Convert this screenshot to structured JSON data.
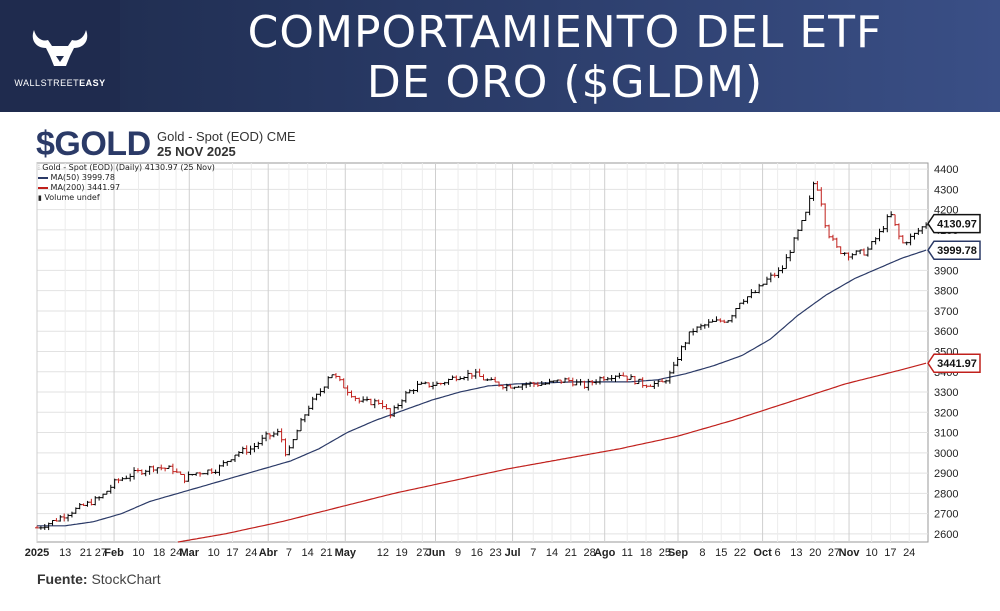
{
  "banner": {
    "brand": "WALLSTREETEASY",
    "brand_light": "WALLSTREET",
    "brand_bold": "EASY",
    "title_line1": "COMPORTAMIENTO DEL ETF",
    "title_line2": "DE ORO ($GLDM)"
  },
  "header": {
    "symbol": "$GOLD",
    "name": "Gold - Spot (EOD) CME",
    "date": "25 NOV 2025"
  },
  "legend": {
    "line1": "Gold - Spot (EOD) (Daily) 4130.97 (25 Nov)",
    "line2": "MA(50) 3999.78",
    "line3": "MA(200) 3441.97",
    "line4": "Volume undef"
  },
  "source": {
    "label": "Fuente:",
    "value": "StockChart"
  },
  "colors": {
    "up": "#000000",
    "down": "#c0201c",
    "ma50": "#2b3a67",
    "ma200": "#c0201c",
    "banner": "#25355e"
  },
  "chart_data": {
    "type": "line",
    "title": "Gold - Spot (EOD) CME",
    "ylim": [
      2560,
      4430
    ],
    "y_ticks": [
      2600,
      2700,
      2800,
      2900,
      3000,
      3100,
      3200,
      3300,
      3400,
      3500,
      3600,
      3700,
      3800,
      3900,
      4000,
      4100,
      4200,
      4300,
      4400
    ],
    "y_tick_labels": [
      "2600",
      "2700",
      "2800",
      "2900",
      "3000",
      "3100",
      "3200",
      "3300",
      "3400",
      "3500",
      "3600",
      "3700",
      "3800",
      "3900",
      "4000",
      "4100",
      "4200",
      "4300",
      "4400"
    ],
    "x_ticks": [
      {
        "label": "2025",
        "week": 0,
        "bold": true
      },
      {
        "label": "13",
        "week": 1.5
      },
      {
        "label": "21",
        "week": 2.6
      },
      {
        "label": "27",
        "week": 3.4
      },
      {
        "label": "Feb",
        "week": 4.1,
        "bold": true
      },
      {
        "label": "10",
        "week": 5.4
      },
      {
        "label": "18",
        "week": 6.5
      },
      {
        "label": "24",
        "week": 7.4
      },
      {
        "label": "Mar",
        "week": 8.1,
        "bold": true
      },
      {
        "label": "10",
        "week": 9.4
      },
      {
        "label": "17",
        "week": 10.4
      },
      {
        "label": "24",
        "week": 11.4
      },
      {
        "label": "Abr",
        "week": 12.3,
        "bold": true
      },
      {
        "label": "7",
        "week": 13.4
      },
      {
        "label": "14",
        "week": 14.4
      },
      {
        "label": "21",
        "week": 15.4
      },
      {
        "label": "May",
        "week": 16.4,
        "bold": true
      },
      {
        "label": "12",
        "week": 18.4
      },
      {
        "label": "19",
        "week": 19.4
      },
      {
        "label": "27",
        "week": 20.5
      },
      {
        "label": "Jun",
        "week": 21.2,
        "bold": true
      },
      {
        "label": "9",
        "week": 22.4
      },
      {
        "label": "16",
        "week": 23.4
      },
      {
        "label": "23",
        "week": 24.4
      },
      {
        "label": "Jul",
        "week": 25.3,
        "bold": true
      },
      {
        "label": "7",
        "week": 26.4
      },
      {
        "label": "14",
        "week": 27.4
      },
      {
        "label": "21",
        "week": 28.4
      },
      {
        "label": "28",
        "week": 29.4
      },
      {
        "label": "Ago",
        "week": 30.2,
        "bold": true
      },
      {
        "label": "11",
        "week": 31.4
      },
      {
        "label": "18",
        "week": 32.4
      },
      {
        "label": "25",
        "week": 33.4
      },
      {
        "label": "Sep",
        "week": 34.1,
        "bold": true
      },
      {
        "label": "8",
        "week": 35.4
      },
      {
        "label": "15",
        "week": 36.4
      },
      {
        "label": "22",
        "week": 37.4
      },
      {
        "label": "Oct",
        "week": 38.6,
        "bold": true
      },
      {
        "label": "6",
        "week": 39.4
      },
      {
        "label": "13",
        "week": 40.4
      },
      {
        "label": "20",
        "week": 41.4
      },
      {
        "label": "27",
        "week": 42.4
      },
      {
        "label": "Nov",
        "week": 43.2,
        "bold": true
      },
      {
        "label": "10",
        "week": 44.4
      },
      {
        "label": "17",
        "week": 45.4
      },
      {
        "label": "24",
        "week": 46.4
      }
    ],
    "x_range": [
      0,
      47.4
    ],
    "price_anchors": [
      [
        0,
        2630
      ],
      [
        0.8,
        2660
      ],
      [
        1.6,
        2700
      ],
      [
        2.5,
        2740
      ],
      [
        3.4,
        2780
      ],
      [
        4.2,
        2860
      ],
      [
        5.2,
        2900
      ],
      [
        6.2,
        2930
      ],
      [
        7.2,
        2920
      ],
      [
        7.8,
        2870
      ],
      [
        8.4,
        2900
      ],
      [
        9.6,
        2920
      ],
      [
        10.6,
        3000
      ],
      [
        11.4,
        3020
      ],
      [
        12.2,
        3080
      ],
      [
        12.9,
        3100
      ],
      [
        13.3,
        2980
      ],
      [
        13.8,
        3100
      ],
      [
        14.4,
        3220
      ],
      [
        15.2,
        3320
      ],
      [
        15.6,
        3400
      ],
      [
        16.4,
        3320
      ],
      [
        17.2,
        3250
      ],
      [
        18.3,
        3250
      ],
      [
        18.8,
        3180
      ],
      [
        19.5,
        3280
      ],
      [
        20.2,
        3330
      ],
      [
        21.4,
        3340
      ],
      [
        22.4,
        3380
      ],
      [
        23.2,
        3390
      ],
      [
        24.1,
        3350
      ],
      [
        25.0,
        3330
      ],
      [
        26.0,
        3340
      ],
      [
        27.0,
        3340
      ],
      [
        28.2,
        3360
      ],
      [
        29.1,
        3330
      ],
      [
        30.0,
        3370
      ],
      [
        31.0,
        3390
      ],
      [
        32.2,
        3340
      ],
      [
        33.2,
        3340
      ],
      [
        33.8,
        3400
      ],
      [
        34.2,
        3500
      ],
      [
        34.8,
        3600
      ],
      [
        35.8,
        3640
      ],
      [
        36.8,
        3660
      ],
      [
        37.4,
        3750
      ],
      [
        38.2,
        3790
      ],
      [
        38.9,
        3860
      ],
      [
        39.6,
        3900
      ],
      [
        40.3,
        4050
      ],
      [
        41.0,
        4200
      ],
      [
        41.3,
        4330
      ],
      [
        41.6,
        4300
      ],
      [
        42.0,
        4100
      ],
      [
        42.6,
        4000
      ],
      [
        43.2,
        3980
      ],
      [
        44.1,
        3990
      ],
      [
        44.8,
        4080
      ],
      [
        45.4,
        4180
      ],
      [
        46.0,
        4030
      ],
      [
        46.6,
        4070
      ],
      [
        47.3,
        4131
      ]
    ],
    "ma50_anchors": [
      [
        0,
        2640
      ],
      [
        1.5,
        2640
      ],
      [
        3,
        2660
      ],
      [
        4.5,
        2700
      ],
      [
        6,
        2760
      ],
      [
        7.5,
        2800
      ],
      [
        9,
        2840
      ],
      [
        10.5,
        2880
      ],
      [
        12,
        2920
      ],
      [
        13.5,
        2960
      ],
      [
        15,
        3020
      ],
      [
        16.5,
        3100
      ],
      [
        18,
        3160
      ],
      [
        19.5,
        3210
      ],
      [
        21,
        3260
      ],
      [
        22.5,
        3300
      ],
      [
        24,
        3330
      ],
      [
        25.5,
        3340
      ],
      [
        27,
        3345
      ],
      [
        28.5,
        3350
      ],
      [
        30,
        3350
      ],
      [
        31.5,
        3350
      ],
      [
        33,
        3360
      ],
      [
        34.5,
        3390
      ],
      [
        36,
        3430
      ],
      [
        37.5,
        3480
      ],
      [
        39,
        3560
      ],
      [
        40.5,
        3680
      ],
      [
        42,
        3780
      ],
      [
        43.5,
        3860
      ],
      [
        45,
        3920
      ],
      [
        46,
        3960
      ],
      [
        47.3,
        4000
      ]
    ],
    "ma200_anchors": [
      [
        7.5,
        2560
      ],
      [
        10,
        2600
      ],
      [
        13,
        2660
      ],
      [
        16,
        2730
      ],
      [
        19,
        2800
      ],
      [
        22,
        2860
      ],
      [
        25,
        2920
      ],
      [
        28,
        2970
      ],
      [
        31,
        3020
      ],
      [
        34,
        3080
      ],
      [
        37,
        3160
      ],
      [
        40,
        3250
      ],
      [
        43,
        3340
      ],
      [
        46,
        3410
      ],
      [
        47.3,
        3442
      ]
    ],
    "last_price_label": "4130.97",
    "ma50_label": "3999.78",
    "ma200_label": "3441.97"
  }
}
